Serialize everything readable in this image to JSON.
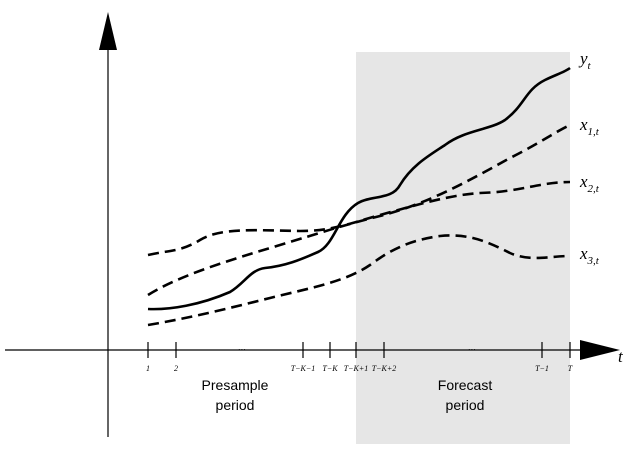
{
  "series_labels": [
    {
      "base": "y",
      "sub": "t"
    },
    {
      "base": "x",
      "sub": "1,t"
    },
    {
      "base": "x",
      "sub": "2,t"
    },
    {
      "base": "x",
      "sub": "3,t"
    }
  ],
  "axis_label": "t",
  "ticks": [
    "1",
    "2",
    "…",
    "T−K−1",
    "T−K",
    "T−K+1",
    "T−K+2",
    "…",
    "T−1",
    "T"
  ],
  "periods": [
    {
      "line1": "Presample",
      "line2": "period"
    },
    {
      "line1": "Forecast",
      "line2": "period"
    }
  ]
}
